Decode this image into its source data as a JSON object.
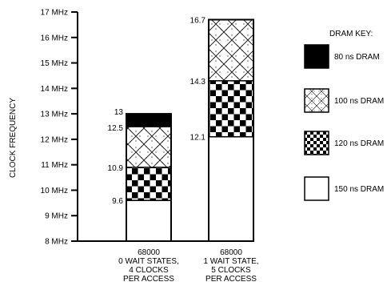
{
  "chart_data": {
    "type": "bar",
    "stacked": true,
    "title": "",
    "xlabel": "",
    "ylabel": "CLOCK FREQUENCY",
    "ylim": [
      8,
      17
    ],
    "yticks": [
      "8 MHz",
      "9 MHz",
      "10 MHz",
      "11 MHz",
      "12 MHz",
      "13 MHz",
      "14 MHz",
      "15 MHz",
      "16 MHz",
      "17 MHz"
    ],
    "grid": false,
    "legend_position": "right",
    "categories": [
      [
        "68000",
        "0 WAIT STATES,",
        "4 CLOCKS",
        "PER ACCESS"
      ],
      [
        "68000",
        "1 WAIT STATE,",
        "5 CLOCKS",
        "PER ACCESS"
      ]
    ],
    "series": [
      {
        "name": "150 ns DRAM",
        "pattern": "plain",
        "values": [
          [
            8,
            9.6
          ],
          [
            8,
            12.1
          ]
        ]
      },
      {
        "name": "120 ns DRAM",
        "pattern": "checker",
        "values": [
          [
            9.6,
            10.9
          ],
          [
            12.1,
            14.3
          ]
        ]
      },
      {
        "name": "100 ns DRAM",
        "pattern": "crosshatch",
        "values": [
          [
            10.9,
            12.5
          ],
          [
            14.3,
            16.7
          ]
        ]
      },
      {
        "name": "80 ns DRAM",
        "pattern": "solid",
        "values": [
          [
            12.5,
            13
          ],
          null
        ]
      }
    ],
    "data_labels": [
      [
        "9.6",
        "10.9",
        "12.5",
        "13"
      ],
      [
        "12.1",
        "14.3",
        "16.7"
      ]
    ],
    "legend": {
      "title": "DRAM KEY:",
      "items": [
        {
          "label": "80 ns DRAM",
          "pattern": "solid"
        },
        {
          "label": "100 ns DRAM",
          "pattern": "crosshatch"
        },
        {
          "label": "120 ns DRAM",
          "pattern": "checker"
        },
        {
          "label": "150 ns DRAM",
          "pattern": "plain"
        }
      ]
    }
  }
}
